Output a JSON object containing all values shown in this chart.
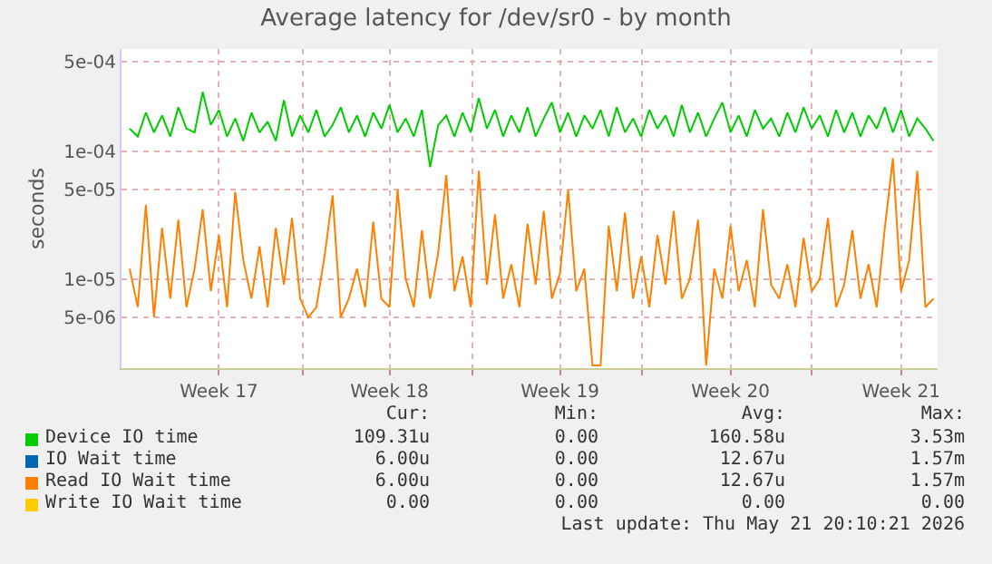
{
  "chart_data": {
    "type": "line",
    "title": "Average latency for /dev/sr0 - by month",
    "ylabel": "seconds",
    "x": [
      "2026-04-18T16:00",
      "2026-04-19T00:00",
      "2026-04-19T08:00",
      "2026-04-19T16:00",
      "2026-04-20T00:00",
      "2026-04-20T08:00",
      "2026-04-20T16:00",
      "2026-04-21T00:00",
      "2026-04-21T08:00",
      "2026-04-21T16:00",
      "2026-04-22T00:00",
      "2026-04-22T08:00",
      "2026-04-22T16:00",
      "2026-04-23T00:00",
      "2026-04-23T08:00",
      "2026-04-23T16:00",
      "2026-04-24T00:00",
      "2026-04-24T08:00",
      "2026-04-24T16:00",
      "2026-04-25T00:00",
      "2026-04-25T08:00",
      "2026-04-25T16:00",
      "2026-04-26T00:00",
      "2026-04-26T08:00",
      "2026-04-26T16:00",
      "2026-04-27T00:00",
      "2026-04-27T08:00",
      "2026-04-27T16:00",
      "2026-04-28T00:00",
      "2026-04-28T08:00",
      "2026-04-28T16:00",
      "2026-04-29T00:00",
      "2026-04-29T08:00",
      "2026-04-29T16:00",
      "2026-04-30T00:00",
      "2026-04-30T08:00",
      "2026-04-30T16:00",
      "2026-05-01T00:00",
      "2026-05-01T08:00",
      "2026-05-01T16:00",
      "2026-05-02T00:00",
      "2026-05-02T08:00",
      "2026-05-02T16:00",
      "2026-05-03T00:00",
      "2026-05-03T08:00",
      "2026-05-03T16:00",
      "2026-05-04T00:00",
      "2026-05-04T08:00",
      "2026-05-04T16:00",
      "2026-05-05T00:00",
      "2026-05-05T08:00",
      "2026-05-05T16:00",
      "2026-05-06T00:00",
      "2026-05-06T08:00",
      "2026-05-06T16:00",
      "2026-05-07T00:00",
      "2026-05-07T08:00",
      "2026-05-07T16:00",
      "2026-05-08T00:00",
      "2026-05-08T08:00",
      "2026-05-08T16:00",
      "2026-05-09T00:00",
      "2026-05-09T08:00",
      "2026-05-09T16:00",
      "2026-05-10T00:00",
      "2026-05-10T08:00",
      "2026-05-10T16:00",
      "2026-05-11T00:00",
      "2026-05-11T08:00",
      "2026-05-11T16:00",
      "2026-05-12T00:00",
      "2026-05-12T08:00",
      "2026-05-12T16:00",
      "2026-05-13T00:00",
      "2026-05-13T08:00",
      "2026-05-13T16:00",
      "2026-05-14T00:00",
      "2026-05-14T08:00",
      "2026-05-14T16:00",
      "2026-05-15T00:00",
      "2026-05-15T08:00",
      "2026-05-15T16:00",
      "2026-05-16T00:00",
      "2026-05-16T08:00",
      "2026-05-16T16:00",
      "2026-05-17T00:00",
      "2026-05-17T08:00",
      "2026-05-17T16:00",
      "2026-05-18T00:00",
      "2026-05-18T08:00",
      "2026-05-18T16:00",
      "2026-05-19T00:00",
      "2026-05-19T08:00",
      "2026-05-19T16:00",
      "2026-05-20T00:00",
      "2026-05-20T08:00",
      "2026-05-20T16:00",
      "2026-05-21T00:00",
      "2026-05-21T08:00",
      "2026-05-21T16:00"
    ],
    "series": [
      {
        "name": "Device IO time",
        "color": "#00cc00",
        "values": [
          0.00015,
          0.00013,
          0.0002,
          0.00014,
          0.00019,
          0.00013,
          0.00022,
          0.00015,
          0.00014,
          0.00029,
          0.00016,
          0.00021,
          0.00013,
          0.00018,
          0.00012,
          0.0002,
          0.00014,
          0.00017,
          0.00012,
          0.00025,
          0.00013,
          0.00019,
          0.00014,
          0.00021,
          0.00013,
          0.00016,
          0.00022,
          0.00014,
          0.00019,
          0.00013,
          0.0002,
          0.00015,
          0.00023,
          0.00014,
          0.00018,
          0.00013,
          0.00021,
          7.5e-05,
          0.00016,
          0.00019,
          0.00013,
          0.0002,
          0.00014,
          0.00026,
          0.00015,
          0.00021,
          0.00013,
          0.00019,
          0.00014,
          0.00022,
          0.00013,
          0.00018,
          0.00024,
          0.00014,
          0.0002,
          0.00013,
          0.00019,
          0.00015,
          0.00021,
          0.00013,
          0.00022,
          0.00014,
          0.00018,
          0.00013,
          0.00021,
          0.00015,
          0.00019,
          0.00013,
          0.00023,
          0.00014,
          0.0002,
          0.00013,
          0.00018,
          0.00024,
          0.00014,
          0.00019,
          0.00013,
          0.00021,
          0.00015,
          0.00018,
          0.00013,
          0.0002,
          0.00014,
          0.00022,
          0.00015,
          0.00019,
          0.00013,
          0.00021,
          0.00014,
          0.0002,
          0.00013,
          0.00019,
          0.00015,
          0.00022,
          0.00014,
          0.00021,
          0.00013,
          0.00018,
          0.00015,
          0.00012
        ]
      },
      {
        "name": "IO Wait time",
        "color": "#0066b3",
        "values": [
          null,
          null,
          null,
          null,
          null,
          null,
          null,
          null,
          null,
          null,
          null,
          null,
          null,
          null,
          null,
          null,
          null,
          null,
          null,
          null,
          null,
          null,
          null,
          null,
          null,
          null,
          null,
          null,
          null,
          null,
          null,
          null,
          null,
          null,
          null,
          null,
          null,
          null,
          null,
          null,
          null,
          null,
          null,
          null,
          null,
          null,
          null,
          null,
          null,
          null,
          null,
          null,
          null,
          null,
          null,
          null,
          null,
          null,
          null,
          null,
          null,
          null,
          null,
          null,
          null,
          null,
          null,
          null,
          null,
          null,
          null,
          null,
          null,
          null,
          null,
          null,
          null,
          null,
          null,
          null,
          null,
          null,
          null,
          null,
          null,
          null,
          null,
          null,
          null,
          null,
          null,
          null,
          null,
          null,
          null,
          null,
          null,
          null,
          null,
          null
        ]
      },
      {
        "name": "Read IO Wait time",
        "color": "#ff8000",
        "values": [
          1.2e-05,
          6e-06,
          3.8e-05,
          5e-06,
          2.5e-05,
          7e-06,
          2.9e-05,
          6e-06,
          1.2e-05,
          3.5e-05,
          8e-06,
          2.2e-05,
          6e-06,
          4.8e-05,
          1.4e-05,
          7e-06,
          1.8e-05,
          6e-06,
          2.5e-05,
          9e-06,
          3e-05,
          7e-06,
          5e-06,
          6e-06,
          1.5e-05,
          4.5e-05,
          5e-06,
          7e-06,
          1.2e-05,
          6e-06,
          2.8e-05,
          7e-06,
          6e-06,
          5e-05,
          1e-05,
          6e-06,
          2.4e-05,
          7e-06,
          1.6e-05,
          6.5e-05,
          8e-06,
          1.5e-05,
          6e-06,
          7e-05,
          9e-06,
          3.2e-05,
          7e-06,
          1.3e-05,
          6e-06,
          2.7e-05,
          9e-06,
          3.4e-05,
          7e-06,
          1.1e-05,
          5e-05,
          8e-06,
          1.2e-05,
          2.1e-06,
          2.1e-06,
          2.6e-05,
          8e-06,
          3.3e-05,
          7e-06,
          1.5e-05,
          6e-06,
          2.2e-05,
          9e-06,
          3.4e-05,
          7e-06,
          1e-05,
          2.9e-05,
          2.1e-06,
          1.2e-05,
          7e-06,
          2.6e-05,
          8e-06,
          1.4e-05,
          6e-06,
          3.5e-05,
          9e-06,
          7e-06,
          1.3e-05,
          6e-06,
          2.1e-05,
          8e-06,
          1e-05,
          3e-05,
          6e-06,
          9e-06,
          2.4e-05,
          7e-06,
          1.3e-05,
          6e-06,
          2.5e-05,
          8.8e-05,
          8e-06,
          1.4e-05,
          7e-05,
          6e-06,
          7e-06
        ]
      },
      {
        "name": "Write IO Wait time",
        "color": "#ffcc00",
        "values": [
          null,
          null,
          null,
          null,
          null,
          null,
          null,
          null,
          null,
          null,
          null,
          null,
          null,
          null,
          null,
          null,
          null,
          null,
          null,
          null,
          null,
          null,
          null,
          null,
          null,
          null,
          null,
          null,
          null,
          null,
          null,
          null,
          null,
          null,
          null,
          null,
          null,
          null,
          null,
          null,
          null,
          null,
          null,
          null,
          null,
          null,
          null,
          null,
          null,
          null,
          null,
          null,
          null,
          null,
          null,
          null,
          null,
          null,
          null,
          null,
          null,
          null,
          null,
          null,
          null,
          null,
          null,
          null,
          null,
          null,
          null,
          null,
          null,
          null,
          null,
          null,
          null,
          null,
          null,
          null,
          null,
          null,
          null,
          null,
          null,
          null,
          null,
          null,
          null,
          null,
          null,
          null,
          null,
          null,
          null,
          null,
          null,
          null,
          null,
          null
        ]
      }
    ],
    "log": "y",
    "ylim": [
      2e-06,
      0.00063
    ],
    "yticks": [
      {
        "value": 5e-06,
        "label": "5e-06"
      },
      {
        "value": 1e-05,
        "label": "1e-05"
      },
      {
        "value": 5e-05,
        "label": "5e-05"
      },
      {
        "value": 0.0001,
        "label": "1e-04"
      },
      {
        "value": 0.0005,
        "label": "5e-04"
      }
    ],
    "xlim": [
      "2026-04-18T08:00",
      "2026-05-21T20:00"
    ],
    "xticks": [
      {
        "value": "2026-04-22T08:00",
        "label": "Week 17"
      },
      {
        "value": "2026-04-25T19:00",
        "label": null
      },
      {
        "value": "2026-04-29T08:00",
        "label": "Week 18"
      },
      {
        "value": "2026-05-02T18:00",
        "label": null
      },
      {
        "value": "2026-05-06T08:00",
        "label": "Week 19"
      },
      {
        "value": "2026-05-09T17:00",
        "label": null
      },
      {
        "value": "2026-05-13T08:00",
        "label": "Week 20"
      },
      {
        "value": "2026-05-16T16:00",
        "label": null
      },
      {
        "value": "2026-05-20T08:00",
        "label": "Week 21"
      }
    ],
    "grid": true,
    "legend": "bottom",
    "annotations": [
      "Cur:",
      "Min:",
      "Avg:",
      "Max:",
      "109.31u",
      "0.00",
      "160.58u",
      "3.53m",
      "6.00u",
      "0.00",
      "12.67u",
      "1.57m",
      "6.00u",
      "0.00",
      "12.67u",
      "1.57m",
      "0.00",
      "0.00",
      "0.00",
      "0.00",
      "Last update: Thu May 21 20:10:21 2026"
    ]
  }
}
